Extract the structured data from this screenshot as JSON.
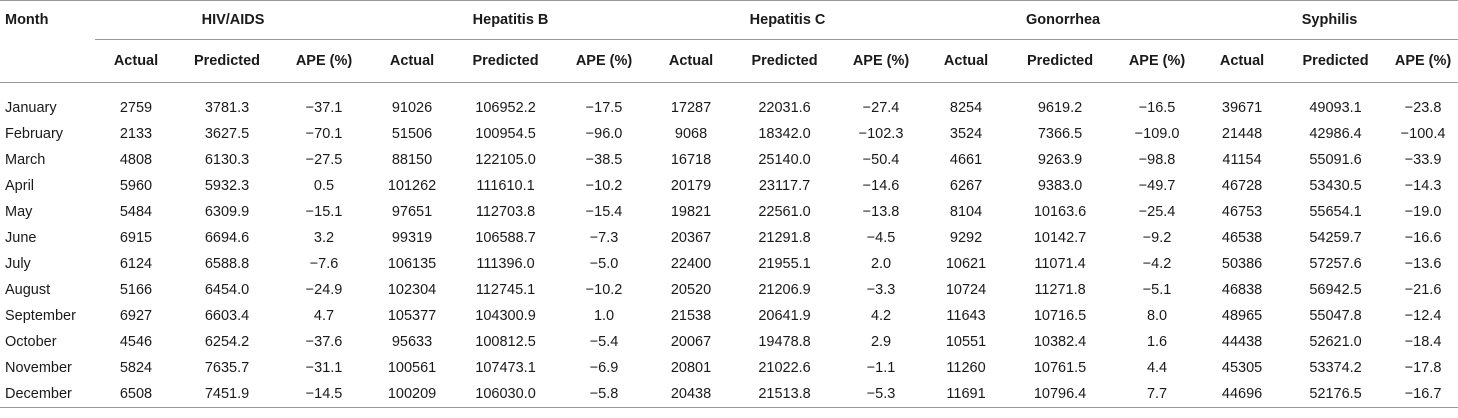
{
  "table": {
    "month_header": "Month",
    "groups": [
      "HIV/AIDS",
      "Hepatitis B",
      "Hepatitis C",
      "Gonorrhea",
      "Syphilis"
    ],
    "subheaders": [
      "Actual",
      "Predicted",
      "APE (%)"
    ],
    "rows": [
      {
        "month": "January",
        "cells": [
          "2759",
          "3781.3",
          "−37.1",
          "91026",
          "106952.2",
          "−17.5",
          "17287",
          "22031.6",
          "−27.4",
          "8254",
          "9619.2",
          "−16.5",
          "39671",
          "49093.1",
          "−23.8"
        ]
      },
      {
        "month": "February",
        "cells": [
          "2133",
          "3627.5",
          "−70.1",
          "51506",
          "100954.5",
          "−96.0",
          "9068",
          "18342.0",
          "−102.3",
          "3524",
          "7366.5",
          "−109.0",
          "21448",
          "42986.4",
          "−100.4"
        ]
      },
      {
        "month": "March",
        "cells": [
          "4808",
          "6130.3",
          "−27.5",
          "88150",
          "122105.0",
          "−38.5",
          "16718",
          "25140.0",
          "−50.4",
          "4661",
          "9263.9",
          "−98.8",
          "41154",
          "55091.6",
          "−33.9"
        ]
      },
      {
        "month": "April",
        "cells": [
          "5960",
          "5932.3",
          "0.5",
          "101262",
          "111610.1",
          "−10.2",
          "20179",
          "23117.7",
          "−14.6",
          "6267",
          "9383.0",
          "−49.7",
          "46728",
          "53430.5",
          "−14.3"
        ]
      },
      {
        "month": "May",
        "cells": [
          "5484",
          "6309.9",
          "−15.1",
          "97651",
          "112703.8",
          "−15.4",
          "19821",
          "22561.0",
          "−13.8",
          "8104",
          "10163.6",
          "−25.4",
          "46753",
          "55654.1",
          "−19.0"
        ]
      },
      {
        "month": "June",
        "cells": [
          "6915",
          "6694.6",
          "3.2",
          "99319",
          "106588.7",
          "−7.3",
          "20367",
          "21291.8",
          "−4.5",
          "9292",
          "10142.7",
          "−9.2",
          "46538",
          "54259.7",
          "−16.6"
        ]
      },
      {
        "month": "July",
        "cells": [
          "6124",
          "6588.8",
          "−7.6",
          "106135",
          "111396.0",
          "−5.0",
          "22400",
          "21955.1",
          "2.0",
          "10621",
          "11071.4",
          "−4.2",
          "50386",
          "57257.6",
          "−13.6"
        ]
      },
      {
        "month": "August",
        "cells": [
          "5166",
          "6454.0",
          "−24.9",
          "102304",
          "112745.1",
          "−10.2",
          "20520",
          "21206.9",
          "−3.3",
          "10724",
          "11271.8",
          "−5.1",
          "46838",
          "56942.5",
          "−21.6"
        ]
      },
      {
        "month": "September",
        "cells": [
          "6927",
          "6603.4",
          "4.7",
          "105377",
          "104300.9",
          "1.0",
          "21538",
          "20641.9",
          "4.2",
          "11643",
          "10716.5",
          "8.0",
          "48965",
          "55047.8",
          "−12.4"
        ]
      },
      {
        "month": "October",
        "cells": [
          "4546",
          "6254.2",
          "−37.6",
          "95633",
          "100812.5",
          "−5.4",
          "20067",
          "19478.8",
          "2.9",
          "10551",
          "10382.4",
          "1.6",
          "44438",
          "52621.0",
          "−18.4"
        ]
      },
      {
        "month": "November",
        "cells": [
          "5824",
          "7635.7",
          "−31.1",
          "100561",
          "107473.1",
          "−6.9",
          "20801",
          "21022.6",
          "−1.1",
          "11260",
          "10761.5",
          "4.4",
          "45305",
          "53374.2",
          "−17.8"
        ]
      },
      {
        "month": "December",
        "cells": [
          "6508",
          "7451.9",
          "−14.5",
          "100209",
          "106030.0",
          "−5.8",
          "20438",
          "21513.8",
          "−5.3",
          "11691",
          "10796.4",
          "7.7",
          "44696",
          "52176.5",
          "−16.7"
        ]
      }
    ]
  }
}
